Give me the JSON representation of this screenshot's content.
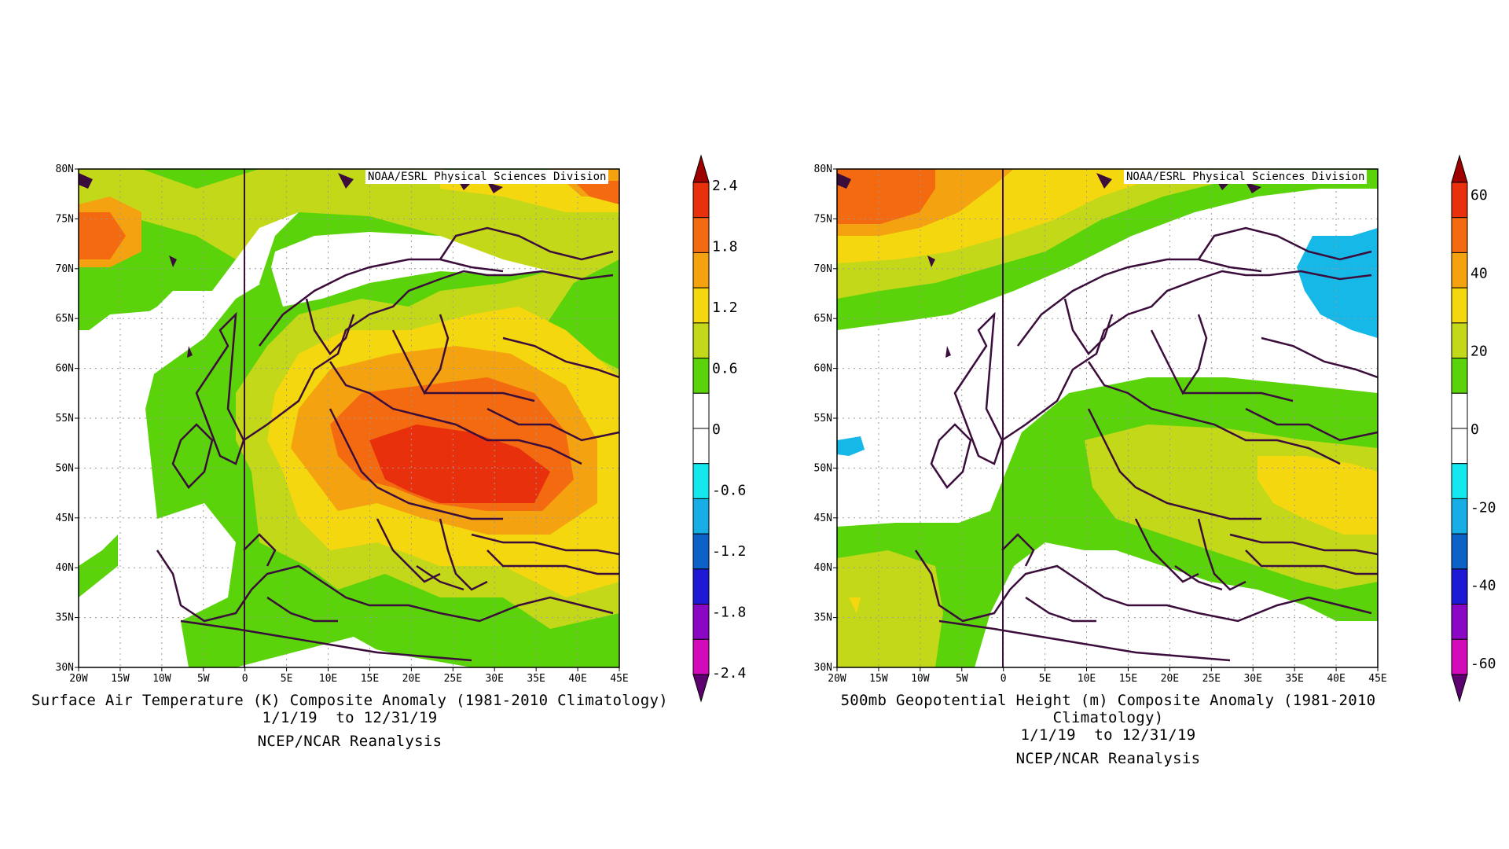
{
  "panels": [
    {
      "id": "temp",
      "credit": "NOAA/ESRL Physical Sciences Division",
      "title_line1": "Surface Air Temperature (K) Composite Anomaly (1981-2010 Climatology)",
      "title_line2": "1/1/19  to 12/31/19",
      "source": "NCEP/NCAR Reanalysis",
      "colorbar": {
        "labels": [
          "2.4",
          "1.8",
          "1.2",
          "0.6",
          "0",
          "-0.6",
          "-1.2",
          "-1.8",
          "-2.4"
        ],
        "colors": [
          "#9e0000",
          "#e8300c",
          "#f46a10",
          "#f5a210",
          "#f5d710",
          "#c4d81a",
          "#5bd30a",
          "#ffffff",
          "#ffffff",
          "#13e8ef",
          "#16aee4",
          "#0c62c7",
          "#1e19d5",
          "#8a07c4",
          "#d20aba",
          "#5d0070"
        ]
      }
    },
    {
      "id": "hgt",
      "credit": "NOAA/ESRL Physical Sciences Division",
      "title_line1": "500mb Geopotential Height (m) Composite Anomaly (1981-2010 Climatology)",
      "title_line2": "1/1/19  to 12/31/19",
      "source": "NCEP/NCAR Reanalysis",
      "colorbar": {
        "labels": [
          "60",
          "40",
          "20",
          "0",
          "-20",
          "-40",
          "-60"
        ],
        "colors": [
          "#9e0000",
          "#e8300c",
          "#f46a10",
          "#f5a210",
          "#f5d710",
          "#c4d81a",
          "#5bd30a",
          "#ffffff",
          "#ffffff",
          "#13e8ef",
          "#16aee4",
          "#0c62c7",
          "#1e19d5",
          "#8a07c4",
          "#d20aba",
          "#5d0070"
        ]
      }
    }
  ],
  "axes": {
    "lat_labels": [
      "80N",
      "75N",
      "70N",
      "65N",
      "60N",
      "55N",
      "50N",
      "45N",
      "40N",
      "35N",
      "30N"
    ],
    "lon_labels": [
      "20W",
      "15W",
      "10W",
      "5W",
      "0",
      "5E",
      "10E",
      "15E",
      "20E",
      "25E",
      "30E",
      "35E",
      "40E",
      "45E"
    ]
  },
  "colors": {
    "coast": "#3a0d3a",
    "red": "#e8300c",
    "orange": "#f46a10",
    "amber": "#f5a210",
    "yellow": "#f5d710",
    "yellowgreen": "#c4d81a",
    "green": "#5bd30a",
    "cyan": "#16b8e8"
  }
}
